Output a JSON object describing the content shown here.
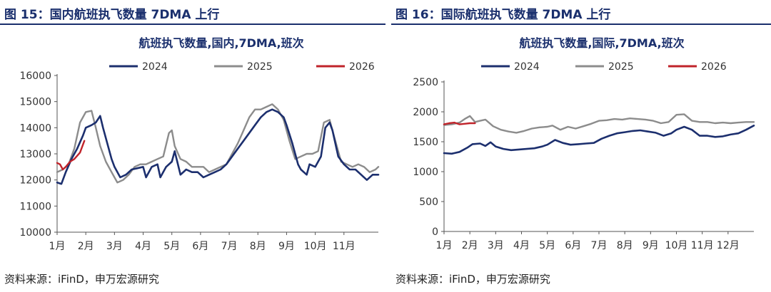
{
  "colors": {
    "2024": "#1c2f6e",
    "2025": "#8c8c8c",
    "2026": "#c0232a",
    "title": "#1a2f6d"
  },
  "panels": [
    {
      "title": "图 15：国内航班执飞数量 7DMA 上行",
      "source": "资料来源：iFinD，申万宏源研究"
    },
    {
      "title": "图 16：国际航班执飞数量 7DMA 上行",
      "source": "资料来源：iFinD，申万宏源研究"
    }
  ],
  "chart_data": [
    {
      "type": "line",
      "title": "航班执飞数量,国内,7DMA,班次",
      "xlabel": "",
      "ylabel": "",
      "ylim": [
        10000,
        16000
      ],
      "yticks": [
        10000,
        11000,
        12000,
        13000,
        14000,
        15000,
        16000
      ],
      "x_range": [
        1,
        12.2
      ],
      "xticks": [
        {
          "pos": 1,
          "label": "1月"
        },
        {
          "pos": 2,
          "label": "2月"
        },
        {
          "pos": 3,
          "label": "3月"
        },
        {
          "pos": 4,
          "label": "4月"
        },
        {
          "pos": 5,
          "label": "5月"
        },
        {
          "pos": 6,
          "label": "6月"
        },
        {
          "pos": 7,
          "label": "7月"
        },
        {
          "pos": 8,
          "label": "8月"
        },
        {
          "pos": 9,
          "label": "9月"
        },
        {
          "pos": 10,
          "label": "10月"
        },
        {
          "pos": 11,
          "label": "11月"
        }
      ],
      "series": [
        {
          "name": "2024",
          "x": [
            1.0,
            1.15,
            1.3,
            1.5,
            1.7,
            1.9,
            2.0,
            2.2,
            2.35,
            2.5,
            2.6,
            2.75,
            2.9,
            3.0,
            3.2,
            3.4,
            3.6,
            3.8,
            4.0,
            4.1,
            4.3,
            4.5,
            4.6,
            4.8,
            5.0,
            5.1,
            5.3,
            5.5,
            5.7,
            5.9,
            6.1,
            6.3,
            6.5,
            6.7,
            6.9,
            7.1,
            7.3,
            7.5,
            7.7,
            7.9,
            8.1,
            8.3,
            8.5,
            8.7,
            8.9,
            9.0,
            9.2,
            9.4,
            9.5,
            9.7,
            9.8,
            10.0,
            10.2,
            10.35,
            10.5,
            10.6,
            10.8,
            11.0,
            11.2,
            11.4,
            11.6,
            11.8,
            12.0,
            12.2
          ],
          "values": [
            11900,
            11850,
            12300,
            12800,
            13200,
            13700,
            14000,
            14100,
            14200,
            14450,
            14000,
            13400,
            12800,
            12500,
            12100,
            12200,
            12400,
            12450,
            12500,
            12100,
            12500,
            12600,
            12100,
            12500,
            12700,
            13100,
            12200,
            12400,
            12300,
            12300,
            12100,
            12200,
            12300,
            12400,
            12600,
            12900,
            13200,
            13500,
            13800,
            14100,
            14400,
            14600,
            14700,
            14600,
            14400,
            14100,
            13400,
            12600,
            12400,
            12200,
            12600,
            12500,
            12900,
            14000,
            14200,
            13900,
            12900,
            12600,
            12400,
            12400,
            12200,
            12000,
            12200,
            12200
          ]
        },
        {
          "name": "2025",
          "x": [
            1.0,
            1.2,
            1.4,
            1.6,
            1.8,
            2.0,
            2.2,
            2.35,
            2.5,
            2.7,
            2.9,
            3.1,
            3.3,
            3.5,
            3.7,
            3.9,
            4.1,
            4.3,
            4.5,
            4.7,
            4.9,
            5.0,
            5.1,
            5.3,
            5.5,
            5.7,
            5.9,
            6.1,
            6.3,
            6.5,
            6.7,
            6.9,
            7.1,
            7.3,
            7.5,
            7.7,
            7.9,
            8.1,
            8.3,
            8.5,
            8.7,
            8.9,
            9.1,
            9.3,
            9.5,
            9.7,
            9.9,
            10.1,
            10.3,
            10.5,
            10.7,
            10.9,
            11.1,
            11.3,
            11.5,
            11.7,
            11.9,
            12.1,
            12.2
          ],
          "values": [
            12300,
            12400,
            12600,
            13200,
            14200,
            14600,
            14650,
            14000,
            13300,
            12700,
            12300,
            11900,
            12000,
            12200,
            12500,
            12600,
            12600,
            12700,
            12800,
            12900,
            13800,
            13900,
            13300,
            12800,
            12700,
            12500,
            12500,
            12500,
            12300,
            12400,
            12500,
            12600,
            13000,
            13400,
            13900,
            14400,
            14700,
            14700,
            14800,
            14900,
            14700,
            14300,
            13500,
            12800,
            12900,
            13000,
            13000,
            13100,
            14200,
            14300,
            13500,
            12700,
            12600,
            12500,
            12600,
            12500,
            12300,
            12400,
            12500
          ]
        },
        {
          "name": "2026",
          "x": [
            1.0,
            1.1,
            1.2,
            1.3,
            1.45,
            1.6,
            1.8,
            1.95
          ],
          "values": [
            12650,
            12600,
            12400,
            12500,
            12700,
            12800,
            13050,
            13500
          ]
        }
      ]
    },
    {
      "type": "line",
      "title": "航班执飞数量,国际,7DMA,班次",
      "xlabel": "",
      "ylabel": "",
      "ylim": [
        0,
        2500
      ],
      "yticks": [
        0,
        500,
        1000,
        1500,
        2000,
        2500
      ],
      "x_range": [
        1,
        13.0
      ],
      "xticks": [
        {
          "pos": 1,
          "label": "1月"
        },
        {
          "pos": 2,
          "label": "2月"
        },
        {
          "pos": 3,
          "label": "3月"
        },
        {
          "pos": 4,
          "label": "4月"
        },
        {
          "pos": 5,
          "label": "5月"
        },
        {
          "pos": 6,
          "label": "6月"
        },
        {
          "pos": 7,
          "label": "7月"
        },
        {
          "pos": 8,
          "label": "8月"
        },
        {
          "pos": 9,
          "label": "9月"
        },
        {
          "pos": 10,
          "label": "10月"
        },
        {
          "pos": 11,
          "label": "11月"
        },
        {
          "pos": 12,
          "label": "12月"
        }
      ],
      "series": [
        {
          "name": "2024",
          "x": [
            1.0,
            1.3,
            1.6,
            1.9,
            2.1,
            2.4,
            2.6,
            2.8,
            3.0,
            3.3,
            3.6,
            3.9,
            4.2,
            4.5,
            4.8,
            5.0,
            5.3,
            5.6,
            5.9,
            6.2,
            6.5,
            6.8,
            7.1,
            7.4,
            7.7,
            8.0,
            8.3,
            8.6,
            8.9,
            9.2,
            9.5,
            9.8,
            10.0,
            10.3,
            10.6,
            10.9,
            11.2,
            11.5,
            11.8,
            12.1,
            12.4,
            12.7,
            13.0
          ],
          "values": [
            1310,
            1300,
            1330,
            1400,
            1460,
            1470,
            1430,
            1490,
            1420,
            1380,
            1360,
            1370,
            1380,
            1390,
            1420,
            1450,
            1530,
            1480,
            1450,
            1460,
            1470,
            1480,
            1550,
            1600,
            1640,
            1660,
            1680,
            1690,
            1670,
            1650,
            1600,
            1640,
            1700,
            1750,
            1700,
            1600,
            1600,
            1580,
            1590,
            1620,
            1640,
            1700,
            1770
          ]
        },
        {
          "name": "2025",
          "x": [
            1.0,
            1.3,
            1.6,
            1.8,
            2.0,
            2.2,
            2.4,
            2.6,
            2.9,
            3.2,
            3.5,
            3.8,
            4.1,
            4.4,
            4.7,
            5.0,
            5.2,
            5.5,
            5.8,
            6.1,
            6.4,
            6.7,
            7.0,
            7.3,
            7.6,
            7.9,
            8.2,
            8.5,
            8.8,
            9.1,
            9.4,
            9.7,
            10.0,
            10.3,
            10.6,
            10.9,
            11.2,
            11.5,
            11.8,
            12.1,
            12.4,
            12.7,
            13.0
          ],
          "values": [
            1780,
            1790,
            1820,
            1880,
            1930,
            1830,
            1850,
            1870,
            1760,
            1700,
            1670,
            1650,
            1680,
            1720,
            1740,
            1750,
            1770,
            1700,
            1750,
            1720,
            1760,
            1800,
            1850,
            1860,
            1880,
            1870,
            1890,
            1880,
            1870,
            1850,
            1810,
            1830,
            1950,
            1960,
            1850,
            1830,
            1830,
            1810,
            1820,
            1810,
            1820,
            1830,
            1830
          ]
        },
        {
          "name": "2026",
          "x": [
            1.0,
            1.2,
            1.4,
            1.6,
            1.8,
            2.0,
            2.2
          ],
          "values": [
            1790,
            1810,
            1820,
            1790,
            1800,
            1810,
            1810
          ]
        }
      ]
    }
  ]
}
